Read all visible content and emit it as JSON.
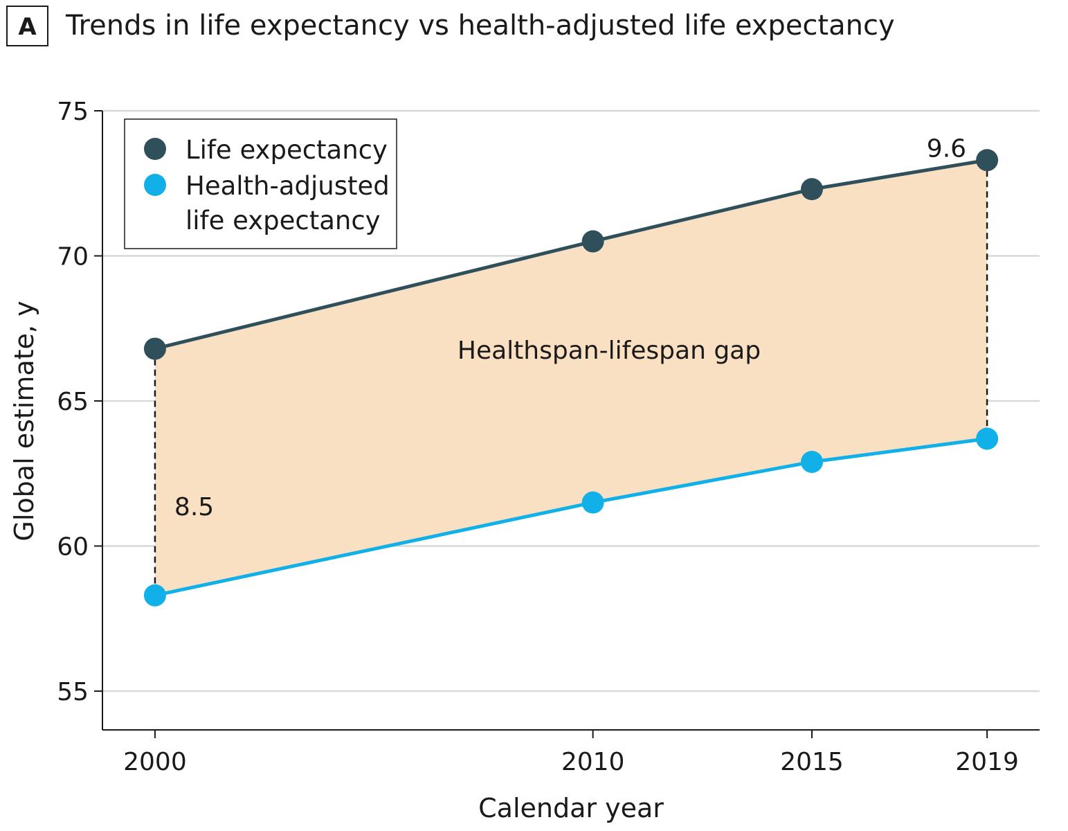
{
  "panel_label": "A",
  "chart_data": {
    "type": "line",
    "title": "Trends in life expectancy vs health-adjusted life expectancy",
    "xlabel": "Calendar year",
    "ylabel": "Global estimate, y",
    "x": [
      2000,
      2010,
      2015,
      2019
    ],
    "x_tick_labels": [
      "2000",
      "2010",
      "2015",
      "2019"
    ],
    "xlim": [
      1998.8,
      2020.2
    ],
    "ylim": [
      53.7,
      75
    ],
    "y_ticks": [
      55,
      60,
      65,
      70,
      75
    ],
    "y_tick_labels": [
      "55",
      "60",
      "65",
      "70",
      "75"
    ],
    "grid": true,
    "legend_position": "top-left",
    "series": [
      {
        "name": "Life expectancy",
        "legend_label": [
          "Life expectancy"
        ],
        "color": "#2f4f5a",
        "values": [
          66.8,
          70.5,
          72.3,
          73.3
        ]
      },
      {
        "name": "Health-adjusted life expectancy",
        "legend_label": [
          "Health-adjusted",
          "life expectancy"
        ],
        "color": "#12b0e8",
        "values": [
          58.3,
          61.5,
          62.9,
          63.7
        ]
      }
    ],
    "fill_color": "#fae0c3",
    "annotations": {
      "area_label": "Healthspan-lifespan gap",
      "gaps": [
        {
          "x": 2000,
          "label": "8.5"
        },
        {
          "x": 2019,
          "label": "9.6"
        }
      ]
    }
  }
}
